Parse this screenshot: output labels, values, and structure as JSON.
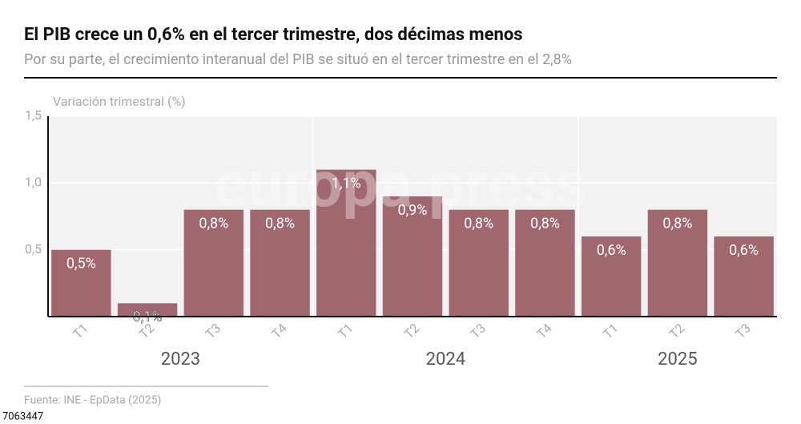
{
  "chart_data": {
    "type": "bar",
    "title": "El PIB crece un 0,6% en el tercer trimestre, dos décimas menos",
    "subtitle": "Por su parte, el crecimiento interanual del PIB se situó en el tercer trimestre en el 2,8%",
    "y_label": "Variación trimestral (%)",
    "categories": [
      "T1",
      "T2",
      "T3",
      "T4",
      "T1",
      "T2",
      "T3",
      "T4",
      "T1",
      "T2",
      "T3"
    ],
    "groups": [
      {
        "name": "2023",
        "size": 4
      },
      {
        "name": "2024",
        "size": 4
      },
      {
        "name": "2025",
        "size": 3
      }
    ],
    "values": [
      0.5,
      0.1,
      0.8,
      0.8,
      1.1,
      0.9,
      0.8,
      0.8,
      0.6,
      0.8,
      0.6
    ],
    "value_labels": [
      "0,5%",
      "0,1%",
      "0,8%",
      "0,8%",
      "1,1%",
      "0,9%",
      "0,8%",
      "0,8%",
      "0,6%",
      "0,8%",
      "0,6%"
    ],
    "color": "#a0686e",
    "ylim": [
      0,
      1.5
    ],
    "yticks": [
      {
        "value": 0.5,
        "label": "0,5"
      },
      {
        "value": 1.0,
        "label": "1,0"
      },
      {
        "value": 1.5,
        "label": "1,5"
      }
    ],
    "grid": true,
    "watermark": "europa press",
    "source": "Fuente: INE - EpData (2025)",
    "image_id": "7063447"
  }
}
